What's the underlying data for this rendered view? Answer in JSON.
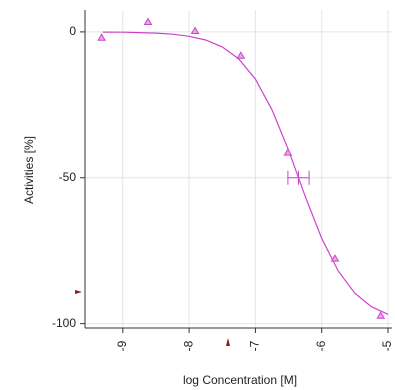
{
  "chart_data": {
    "type": "line",
    "xlabel": "log Concentration [M]",
    "ylabel": "Activities [%]",
    "xlim": [
      -9.57,
      -4.94
    ],
    "ylim": [
      -101.5,
      7.5
    ],
    "xticks": [
      -9,
      -8,
      -7,
      -6,
      -5
    ],
    "yticks": [
      0,
      -50,
      -100
    ],
    "grid": true,
    "color": "#cc44cc",
    "points": {
      "x": [
        -9.32,
        -8.62,
        -7.91,
        -7.22,
        -6.51,
        -5.8,
        -5.11
      ],
      "values": [
        -2,
        3.4,
        0.3,
        -8.2,
        -41.4,
        -77.7,
        -97.3
      ]
    },
    "curve": {
      "x": [
        -9.3,
        -9.0,
        -8.75,
        -8.5,
        -8.25,
        -8.0,
        -7.75,
        -7.5,
        -7.25,
        -7.0,
        -6.75,
        -6.5,
        -6.25,
        -6.0,
        -5.75,
        -5.5,
        -5.25,
        -5.0
      ],
      "values": [
        -0.06,
        -0.12,
        -0.23,
        -0.43,
        -0.81,
        -1.51,
        -2.8,
        -5.15,
        -9.28,
        -16.2,
        -26.7,
        -40.6,
        -56.3,
        -70.8,
        -82.0,
        -89.6,
        -94.2,
        -96.8
      ]
    },
    "ec50": {
      "x": -6.35,
      "y": -50,
      "xerr": 0.16
    }
  }
}
